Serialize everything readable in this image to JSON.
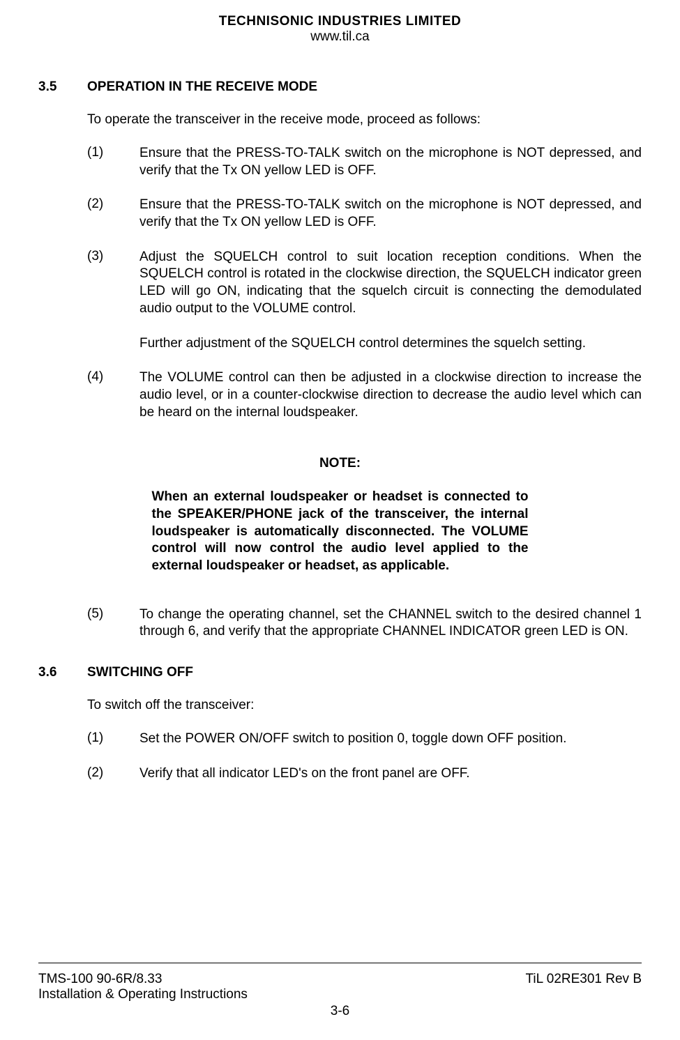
{
  "header": {
    "company": "TECHNISONIC INDUSTRIES LIMITED",
    "website": "www.til.ca"
  },
  "section35": {
    "number": "3.5",
    "title": "OPERATION IN THE RECEIVE MODE",
    "intro": "To operate the transceiver in the receive mode, proceed as follows:",
    "items": [
      {
        "num": "(1)",
        "text": "Ensure that the PRESS-TO-TALK switch on the microphone is NOT depressed, and verify that the Tx ON yellow LED is OFF."
      },
      {
        "num": "(2)",
        "text": "Ensure that the PRESS-TO-TALK switch on the microphone is NOT depressed, and verify that the Tx ON yellow LED is OFF."
      },
      {
        "num": "(3)",
        "text": "Adjust the SQUELCH control to suit location reception conditions. When the SQUELCH control is rotated in the clockwise direction, the SQUELCH indicator green LED will go ON, indicating that the squelch circuit is connecting the demodulated audio output to the VOLUME control."
      },
      {
        "num": "(4)",
        "text": "The VOLUME control can then be adjusted in a clockwise direction to increase the audio level, or in a counter-clockwise direction to decrease the audio level which can be heard on the internal loudspeaker."
      }
    ],
    "item3_followup": "Further adjustment of the SQUELCH control determines the squelch setting.",
    "item5": {
      "num": "(5)",
      "text": "To change the operating channel, set the CHANNEL switch to the desired channel 1 through 6, and verify that the appropriate CHANNEL INDICATOR green LED is ON."
    }
  },
  "note": {
    "label": "NOTE:",
    "body": "When an external loudspeaker or headset is connected to the SPEAKER/PHONE jack of the transceiver, the internal loudspeaker is automatically disconnected.  The VOLUME control will now control the audio level applied to the external loudspeaker or headset, as applicable."
  },
  "section36": {
    "number": "3.6",
    "title": "SWITCHING OFF",
    "intro": "To switch off the transceiver:",
    "items": [
      {
        "num": "(1)",
        "text": "Set the POWER ON/OFF switch to position 0, toggle down OFF position."
      },
      {
        "num": "(2)",
        "text": "Verify that all indicator LED's on the front panel are OFF."
      }
    ]
  },
  "footer": {
    "left1": "TMS-100 90-6R/8.33",
    "right1": "TiL 02RE301 Rev B",
    "left2": "Installation & Operating Instructions",
    "page": "3-6"
  }
}
